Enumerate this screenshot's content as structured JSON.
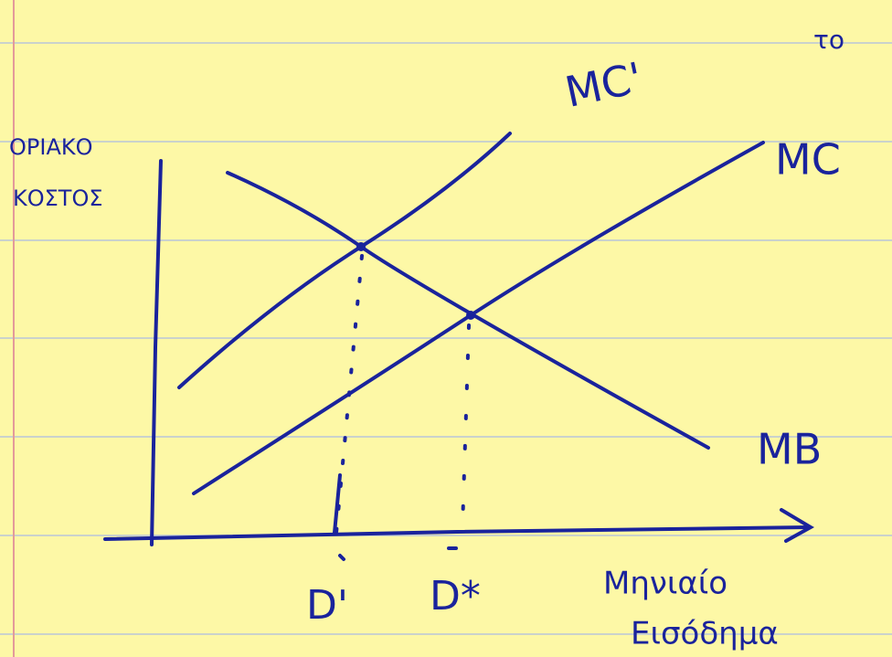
{
  "diagram": {
    "corner_note": "το",
    "y_axis_label": [
      "ΟΡΙΑΚΟ",
      "ΚΟΣΤΟΣ"
    ],
    "x_axis_label": [
      "Μηνιαίο",
      "Εισόδημα"
    ],
    "curves": {
      "mc_prime": "MC'",
      "mc": "MC",
      "mb": "MB"
    },
    "points": {
      "d_prime": "D'",
      "d_star": "D*"
    }
  }
}
